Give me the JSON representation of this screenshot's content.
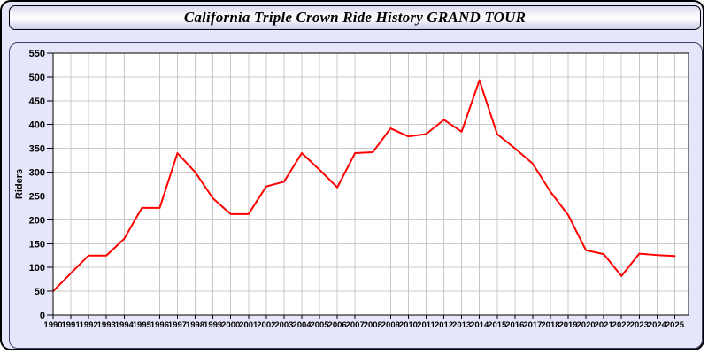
{
  "chart_data": {
    "type": "line",
    "title": "California Triple Crown Ride History GRAND TOUR",
    "xlabel": "",
    "ylabel": "Riders",
    "x": [
      1990,
      1991,
      1992,
      1993,
      1994,
      1995,
      1996,
      1997,
      1998,
      1999,
      2000,
      2001,
      2002,
      2003,
      2004,
      2005,
      2006,
      2007,
      2008,
      2009,
      2010,
      2011,
      2012,
      2013,
      2014,
      2015,
      2016,
      2017,
      2018,
      2019,
      2020,
      2021,
      2022,
      2023,
      2024,
      2025
    ],
    "series": [
      {
        "name": "Riders",
        "values": [
          50,
          88,
          125,
          125,
          160,
          225,
          225,
          340,
          300,
          245,
          212,
          212,
          270,
          280,
          340,
          305,
          268,
          340,
          342,
          392,
          375,
          380,
          410,
          385,
          493,
          380,
          350,
          318,
          259,
          210,
          136,
          128,
          82,
          129,
          126,
          124
        ]
      }
    ],
    "ylim": [
      0,
      550
    ],
    "ytick_step": 50,
    "grid": true,
    "legend": false
  },
  "colors": {
    "line": "#ff0000",
    "grid": "#c8c8c8",
    "plot_background": "#ffffff",
    "plot_frame": "#000000",
    "panel_background": "#e6e6fa",
    "panel_border": "#3f3f6e",
    "title_bar_border": "#000000",
    "text": "#000000"
  }
}
